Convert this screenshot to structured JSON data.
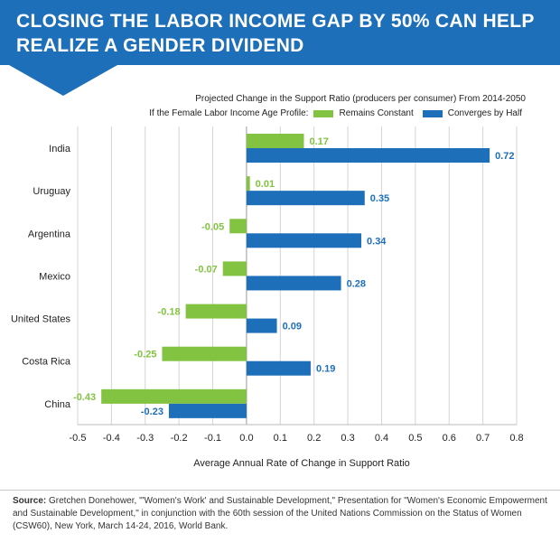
{
  "header": {
    "title_line_1": "CLOSING THE LABOR INCOME GAP BY 50% CAN HELP",
    "title_line_2": "REALIZE A GENDER DIVIDEND",
    "banner_color": "#1e6fb9"
  },
  "legend": {
    "title": "Projected Change in the Support Ratio (producers per consumer) From 2014-2050",
    "prefix": "If the Female Labor Income Age Profile:",
    "items": [
      {
        "label": "Remains Constant",
        "color": "#82c341"
      },
      {
        "label": "Converges by Half",
        "color": "#1e6fb9"
      }
    ]
  },
  "chart_data": {
    "type": "bar",
    "orientation": "horizontal",
    "categories": [
      "India",
      "Uruguay",
      "Argentina",
      "Mexico",
      "United States",
      "Costa Rica",
      "China"
    ],
    "series": [
      {
        "name": "Remains Constant",
        "color": "#82c341",
        "values": [
          0.17,
          0.01,
          -0.05,
          -0.07,
          -0.18,
          -0.25,
          -0.43
        ],
        "labels": [
          "0.17",
          "0.01",
          "-0.05",
          "-0.07",
          "-0.18",
          "-0.25",
          "-0.43"
        ]
      },
      {
        "name": "Converges by Half",
        "color": "#1e6fb9",
        "values": [
          0.72,
          0.35,
          0.34,
          0.28,
          0.09,
          0.19,
          -0.23
        ],
        "labels": [
          "0.72",
          "0.35",
          "0.34",
          "0.28",
          "0.09",
          "0.19",
          "-0.23"
        ]
      }
    ],
    "xlim": [
      -0.5,
      0.8
    ],
    "xticks": [
      "-0.5",
      "-0.4",
      "-0.3",
      "-0.2",
      "-0.1",
      "0.0",
      "0.1",
      "0.2",
      "0.3",
      "0.4",
      "0.5",
      "0.6",
      "0.7",
      "0.8"
    ],
    "xlabel": "Average Annual Rate of Change in Support Ratio",
    "grid": "vertical"
  },
  "source": {
    "label": "Source:",
    "text": " Gretchen Donehower, \"'Women's Work' and Sustainable Development,\" Presentation for \"Women's Economic Empowerment and Sustainable Development,\" in conjunction with the 60th session of the United Nations Commission on the Status of Women (CSW60), New York, March 14-24, 2016, World Bank."
  }
}
